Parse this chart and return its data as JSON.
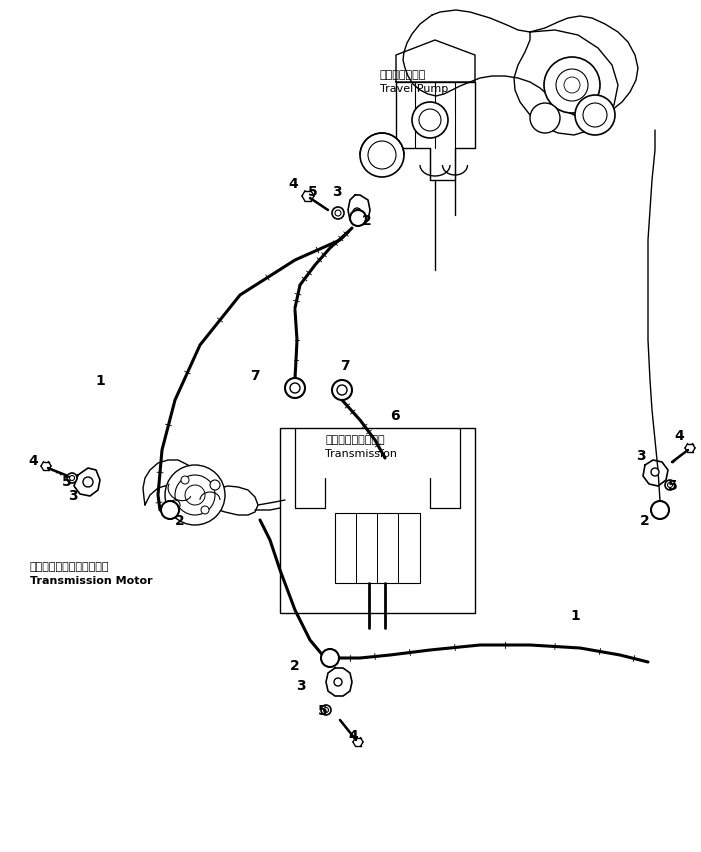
{
  "bg_color": "#ffffff",
  "line_color": "#000000",
  "fig_width": 7.01,
  "fig_height": 8.52,
  "dpi": 100,
  "labels": {
    "travel_pump_jp": "トラベルポンプ",
    "travel_pump_en": "Travel Pump",
    "transmission_jp": "トランスミッション",
    "transmission_en": "Transmission",
    "trans_motor_jp": "トランスミッションモータ",
    "trans_motor_en": "Transmission Motor"
  }
}
